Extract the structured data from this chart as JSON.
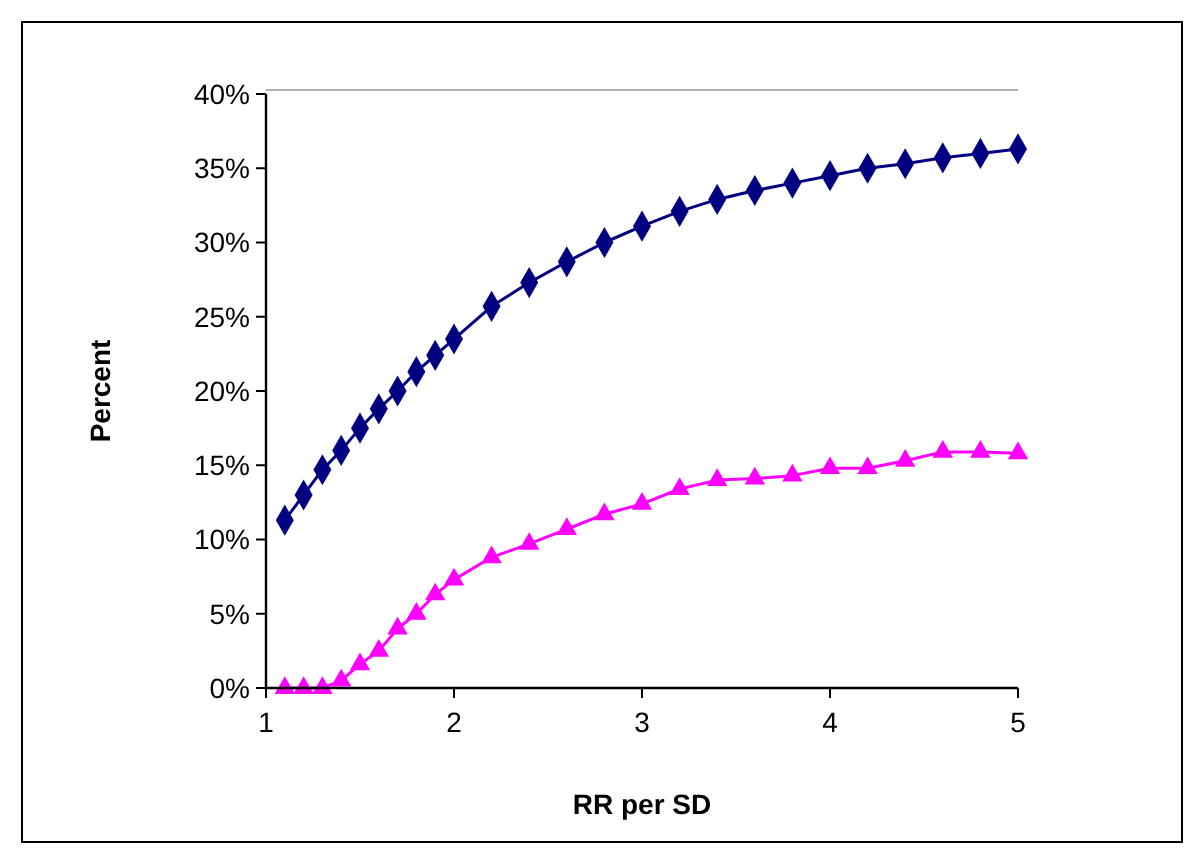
{
  "chart_data": {
    "type": "line",
    "xlabel": "RR per SD",
    "ylabel": "Percent",
    "xlim": [
      1,
      5
    ],
    "xticks": [
      1,
      2,
      3,
      4,
      5
    ],
    "ylim": [
      0,
      40
    ],
    "yticks": [
      {
        "value": 0,
        "label": "0%"
      },
      {
        "value": 5,
        "label": "5%"
      },
      {
        "value": 10,
        "label": "10%"
      },
      {
        "value": 15,
        "label": "15%"
      },
      {
        "value": 20,
        "label": "20%"
      },
      {
        "value": 25,
        "label": "25%"
      },
      {
        "value": 30,
        "label": "30%"
      },
      {
        "value": 35,
        "label": "35%"
      },
      {
        "value": 40,
        "label": "40%"
      }
    ],
    "line_style": "solid",
    "x": [
      1.1,
      1.2,
      1.3,
      1.4,
      1.5,
      1.6,
      1.7,
      1.8,
      1.9,
      2.0,
      2.2,
      2.4,
      2.6,
      2.8,
      3.0,
      3.2,
      3.4,
      3.6,
      3.8,
      4.0,
      4.2,
      4.4,
      4.6,
      4.8,
      5.0
    ],
    "series": [
      {
        "color": "#000080",
        "marker": "diamond",
        "values": [
          11.3,
          13,
          14.7,
          16,
          17.5,
          18.8,
          20,
          21.3,
          22.4,
          23.5,
          25.7,
          27.3,
          28.7,
          30,
          31.1,
          32.1,
          32.9,
          33.5,
          34,
          34.5,
          35,
          35.3,
          35.7,
          36,
          36.3
        ]
      },
      {
        "color": "#ff00ff",
        "marker": "triangle",
        "values": [
          0,
          0,
          0,
          0.5,
          1.6,
          2.5,
          4,
          5,
          6.3,
          7.3,
          8.8,
          9.7,
          10.7,
          11.7,
          12.4,
          13.4,
          14,
          14.1,
          14.3,
          14.8,
          14.8,
          15.3,
          15.9,
          15.9,
          15.8
        ]
      }
    ]
  }
}
